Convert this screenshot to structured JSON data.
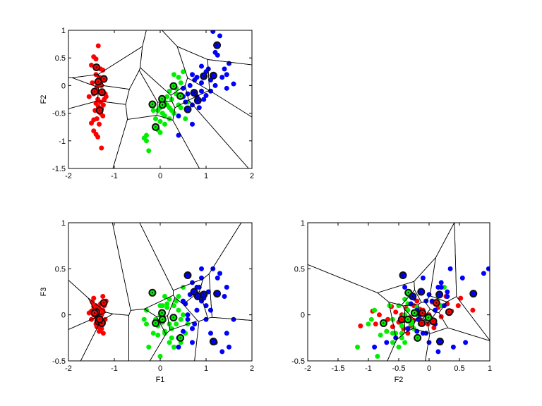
{
  "chart_data": [
    {
      "type": "scatter",
      "xdim": 0,
      "ydim": 1,
      "xlabel": "",
      "ylabel": "F2",
      "xlim": [
        -2,
        2
      ],
      "ylim": [
        -1.5,
        1
      ],
      "xticks": [
        "-2",
        "-1",
        "0",
        "1",
        "2"
      ],
      "yticks": [
        "-1.5",
        "-1",
        "-0.5",
        "0",
        "0.5",
        "1"
      ],
      "voronoi": true
    },
    {
      "type": "scatter",
      "xdim": 0,
      "ydim": 2,
      "xlabel": "F1",
      "ylabel": "F3",
      "xlim": [
        -2,
        2
      ],
      "ylim": [
        -0.5,
        1
      ],
      "xticks": [
        "-2",
        "-1",
        "0",
        "1",
        "2"
      ],
      "yticks": [
        "-0.5",
        "0",
        "0.5",
        "1"
      ],
      "voronoi": true
    },
    {
      "type": "scatter",
      "xdim": 1,
      "ydim": 2,
      "xlabel": "F2",
      "ylabel": "",
      "xlim": [
        -2,
        1
      ],
      "ylim": [
        -0.5,
        1
      ],
      "xticks": [
        "-2",
        "-1.5",
        "-1",
        "-0.5",
        "0",
        "0.5",
        "1"
      ],
      "yticks": [
        "-0.5",
        "0",
        "0.5",
        "1"
      ],
      "voronoi": true
    }
  ],
  "classes": [
    {
      "color": "#ff0000",
      "centers": [
        [
          -1.39,
          0.33,
          0.03
        ],
        [
          -1.23,
          0.12,
          0.13
        ],
        [
          -1.35,
          0.07,
          -0.07
        ],
        [
          -1.43,
          -0.11,
          0.02
        ],
        [
          -1.27,
          -0.12,
          -0.09
        ],
        [
          -1.32,
          -0.45,
          -0.05
        ]
      ],
      "points": [
        [
          -1.35,
          0.72,
          0.05
        ],
        [
          -1.45,
          0.52,
          0.18
        ],
        [
          -1.4,
          0.48,
          0.1
        ],
        [
          -1.5,
          0.37,
          0.04
        ],
        [
          -1.3,
          0.3,
          0.12
        ],
        [
          -1.25,
          0.28,
          0.2
        ],
        [
          -1.4,
          0.2,
          -0.02
        ],
        [
          -1.33,
          0.15,
          0.08
        ],
        [
          -1.28,
          0.0,
          0.0
        ],
        [
          -1.38,
          -0.02,
          -0.1
        ],
        [
          -1.25,
          -0.1,
          0.05
        ],
        [
          -1.2,
          -0.15,
          -0.05
        ],
        [
          -1.45,
          -0.15,
          0.06
        ],
        [
          -1.55,
          -0.2,
          0.02
        ],
        [
          -1.22,
          -0.25,
          0.1
        ],
        [
          -1.3,
          -0.3,
          -0.12
        ],
        [
          -1.4,
          -0.32,
          -0.03
        ],
        [
          -1.35,
          -0.38,
          0.07
        ],
        [
          -1.28,
          -0.42,
          -0.15
        ],
        [
          -1.42,
          -0.45,
          0.0
        ],
        [
          -1.3,
          -0.5,
          -0.08
        ],
        [
          -1.25,
          -0.55,
          0.03
        ],
        [
          -1.38,
          -0.6,
          -0.13
        ],
        [
          -1.45,
          -0.62,
          0.09
        ],
        [
          -1.5,
          -0.68,
          -0.05
        ],
        [
          -1.33,
          -0.7,
          -0.18
        ],
        [
          -1.45,
          -0.82,
          0.0
        ],
        [
          -1.4,
          -0.88,
          -0.1
        ],
        [
          -1.36,
          -0.93,
          0.04
        ],
        [
          -1.28,
          -1.13,
          -0.12
        ],
        [
          -1.18,
          -0.2,
          0.15
        ],
        [
          -1.32,
          0.08,
          -0.14
        ],
        [
          -1.48,
          0.05,
          0.14
        ],
        [
          -1.24,
          -0.35,
          -0.2
        ],
        [
          -1.36,
          -0.25,
          -0.06
        ]
      ]
    },
    {
      "color": "#00ee00",
      "centers": [
        [
          0.29,
          -0.01,
          -0.03
        ],
        [
          0.04,
          -0.24,
          0.02
        ],
        [
          -0.17,
          -0.34,
          0.24
        ],
        [
          0.05,
          -0.35,
          -0.05
        ],
        [
          0.44,
          -0.19,
          -0.25
        ],
        [
          -0.1,
          -0.75,
          -0.09
        ]
      ],
      "points": [
        [
          0.5,
          0.25,
          0.3
        ],
        [
          0.4,
          0.15,
          0.2
        ],
        [
          0.3,
          0.2,
          0.1
        ],
        [
          0.45,
          0.05,
          -0.05
        ],
        [
          0.35,
          -0.05,
          0.15
        ],
        [
          0.2,
          -0.1,
          -0.1
        ],
        [
          0.15,
          -0.2,
          0.08
        ],
        [
          0.1,
          -0.3,
          0.2
        ],
        [
          0.25,
          -0.25,
          -0.15
        ],
        [
          0.0,
          -0.4,
          0.0
        ],
        [
          -0.05,
          -0.45,
          -0.12
        ],
        [
          0.05,
          -0.5,
          0.1
        ],
        [
          0.1,
          -0.55,
          -0.2
        ],
        [
          -0.1,
          -0.6,
          -0.05
        ],
        [
          0.0,
          -0.65,
          0.1
        ],
        [
          0.1,
          -0.7,
          -0.18
        ],
        [
          -0.05,
          -0.8,
          -0.22
        ],
        [
          0.2,
          -0.6,
          -0.3
        ],
        [
          0.3,
          -0.5,
          -0.35
        ],
        [
          0.6,
          -0.3,
          -0.1
        ],
        [
          0.45,
          -0.4,
          -0.3
        ],
        [
          0.55,
          -0.6,
          -0.2
        ],
        [
          -0.3,
          -0.9,
          0.05
        ],
        [
          -0.35,
          -0.95,
          -0.05
        ],
        [
          -0.3,
          -1.0,
          -0.1
        ],
        [
          -0.25,
          -1.18,
          -0.35
        ],
        [
          -0.15,
          -0.45,
          -0.2
        ],
        [
          0.15,
          -0.35,
          0.12
        ],
        [
          0.35,
          -0.15,
          -0.1
        ],
        [
          0.5,
          -0.2,
          0.0
        ],
        [
          0.0,
          -0.85,
          -0.45
        ],
        [
          0.2,
          -0.4,
          0.17
        ],
        [
          0.05,
          -0.28,
          -0.08
        ],
        [
          0.25,
          -0.45,
          -0.25
        ],
        [
          0.4,
          -0.35,
          0.05
        ]
      ]
    },
    {
      "color": "#0000ff",
      "centers": [
        [
          1.24,
          0.73,
          0.23
        ],
        [
          0.95,
          0.17,
          0.22
        ],
        [
          1.16,
          0.18,
          -0.29
        ],
        [
          0.74,
          -0.13,
          0.25
        ],
        [
          0.82,
          -0.27,
          0.2
        ],
        [
          0.6,
          -0.43,
          0.43
        ]
      ],
      "points": [
        [
          1.15,
          0.98,
          0.5
        ],
        [
          1.3,
          0.9,
          0.45
        ],
        [
          1.25,
          0.55,
          0.4
        ],
        [
          0.9,
          0.35,
          0.5
        ],
        [
          1.4,
          0.3,
          0.2
        ],
        [
          1.45,
          0.2,
          0.3
        ],
        [
          1.6,
          0.03,
          -0.05
        ],
        [
          1.0,
          0.25,
          0.1
        ],
        [
          0.8,
          0.15,
          0.3
        ],
        [
          0.7,
          0.2,
          0.35
        ],
        [
          1.1,
          0.1,
          0.05
        ],
        [
          0.9,
          0.05,
          0.15
        ],
        [
          0.65,
          0.0,
          0.22
        ],
        [
          0.5,
          -0.05,
          0.15
        ],
        [
          0.6,
          -0.15,
          0.0
        ],
        [
          0.8,
          -0.2,
          0.05
        ],
        [
          0.95,
          -0.25,
          0.18
        ],
        [
          1.0,
          -0.18,
          -0.05
        ],
        [
          0.55,
          -0.3,
          0.12
        ],
        [
          0.7,
          -0.35,
          -0.15
        ],
        [
          0.85,
          -0.4,
          0.3
        ],
        [
          0.6,
          -0.45,
          -0.05
        ],
        [
          0.4,
          -0.55,
          -0.25
        ],
        [
          0.7,
          -0.7,
          -0.3
        ],
        [
          0.4,
          -0.9,
          -0.35
        ],
        [
          1.1,
          -0.1,
          -0.2
        ],
        [
          1.2,
          0.0,
          -0.3
        ],
        [
          1.35,
          0.15,
          -0.4
        ],
        [
          1.5,
          0.4,
          -0.35
        ],
        [
          1.45,
          -0.05,
          -0.2
        ],
        [
          0.75,
          0.1,
          -0.1
        ],
        [
          0.9,
          -0.1,
          0.4
        ],
        [
          1.05,
          0.3,
          0.25
        ],
        [
          0.5,
          -0.2,
          -0.18
        ],
        [
          1.2,
          0.6,
          -0.3
        ]
      ]
    }
  ]
}
